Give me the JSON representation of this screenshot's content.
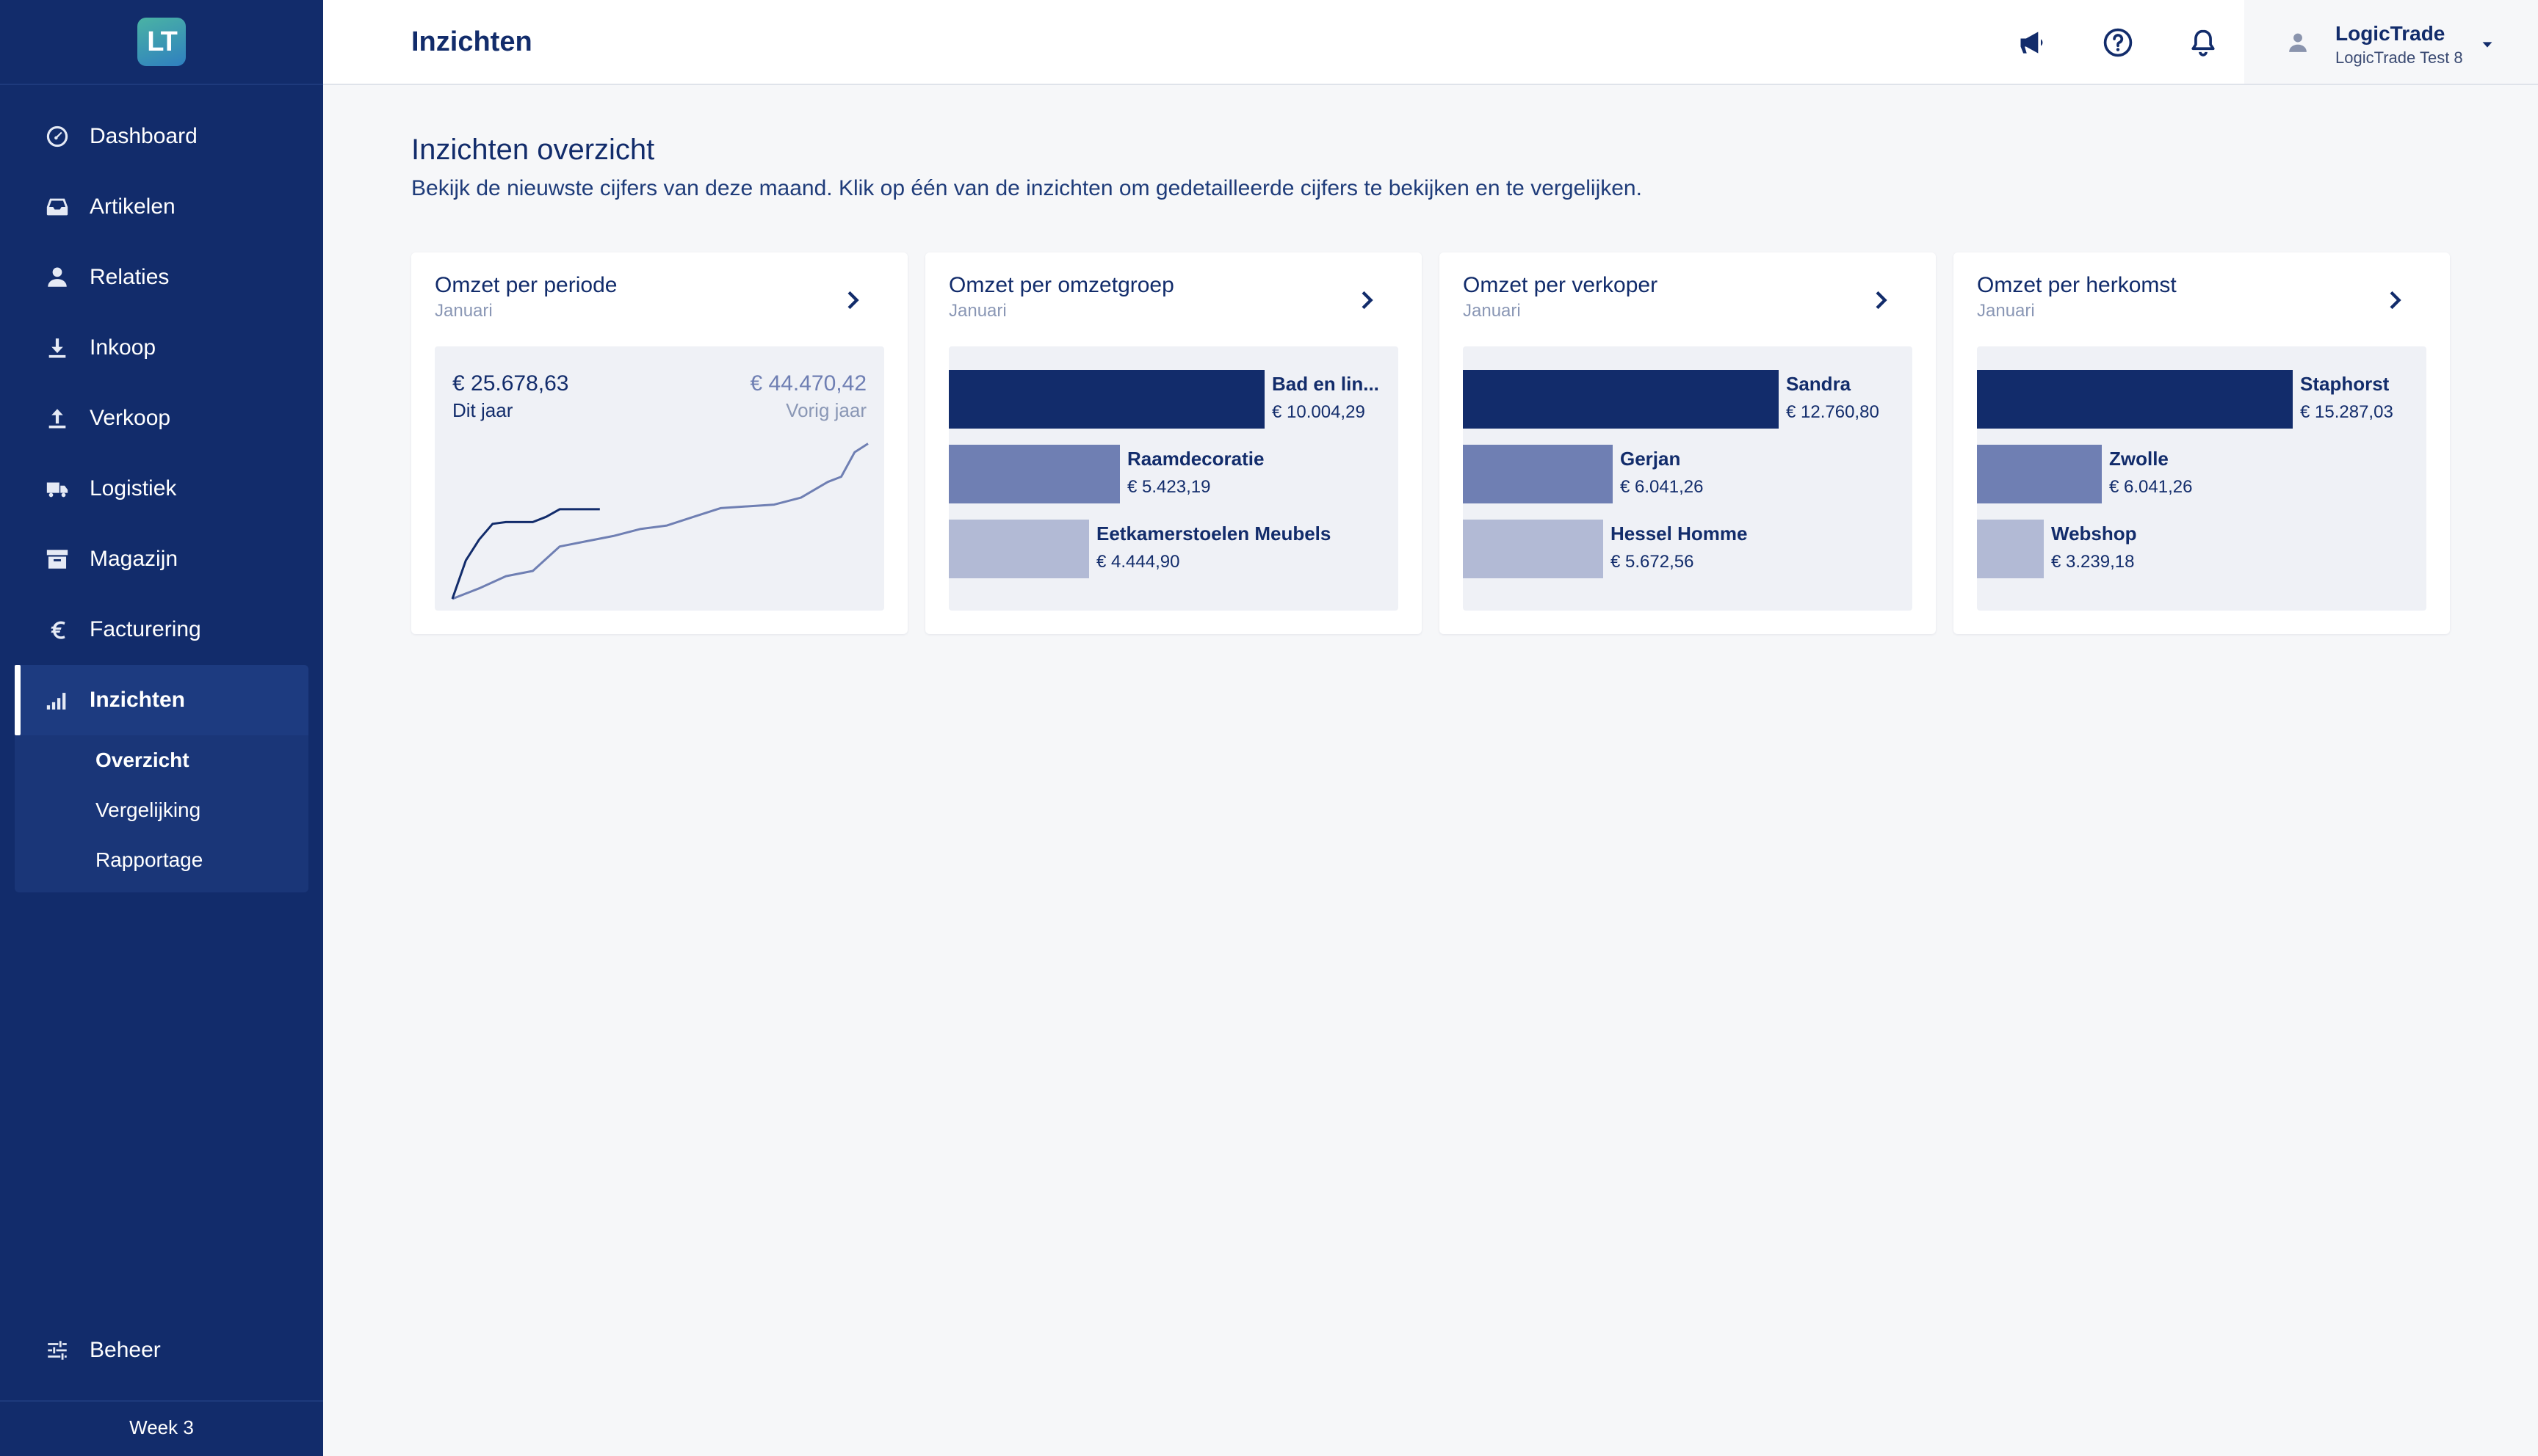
{
  "app": {
    "logo_text": "LT",
    "week_label": "Week 3"
  },
  "header": {
    "title": "Inzichten",
    "icons": [
      "megaphone-icon",
      "help-icon",
      "bell-icon"
    ]
  },
  "user": {
    "name": "LogicTrade",
    "company": "LogicTrade Test 8"
  },
  "sidebar": {
    "items": [
      {
        "label": "Dashboard",
        "icon": "gauge-icon"
      },
      {
        "label": "Artikelen",
        "icon": "inbox-icon"
      },
      {
        "label": "Relaties",
        "icon": "person-icon"
      },
      {
        "label": "Inkoop",
        "icon": "download-icon"
      },
      {
        "label": "Verkoop",
        "icon": "upload-icon"
      },
      {
        "label": "Logistiek",
        "icon": "truck-icon"
      },
      {
        "label": "Magazijn",
        "icon": "archive-icon"
      },
      {
        "label": "Facturering",
        "icon": "euro-icon"
      },
      {
        "label": "Inzichten",
        "icon": "signal-bars-icon"
      }
    ],
    "submenu": [
      {
        "label": "Overzicht"
      },
      {
        "label": "Vergelijking"
      },
      {
        "label": "Rapportage"
      }
    ],
    "beheer": {
      "label": "Beheer",
      "icon": "sliders-icon"
    }
  },
  "main": {
    "title": "Inzichten overzicht",
    "description": "Bekijk de nieuwste cijfers van deze maand. Klik op één van de inzichten om gedetailleerde cijfers te bekijken en te vergelijken."
  },
  "cards": [
    {
      "title": "Omzet per periode",
      "subtitle": "Januari",
      "this_year_value": "€ 25.678,63",
      "this_year_label": "Dit jaar",
      "last_year_value": "€ 44.470,42",
      "last_year_label": "Vorig jaar"
    },
    {
      "title": "Omzet per omzetgroep",
      "subtitle": "Januari",
      "bars": [
        {
          "label": "Bad en lin...",
          "value": "€ 10.004,29",
          "amount": 10004.29,
          "color": "#122c6b"
        },
        {
          "label": "Raamdecoratie",
          "value": "€ 5.423,19",
          "amount": 5423.19,
          "color": "#6f7fb3"
        },
        {
          "label": "Eetkamerstoelen Meubels",
          "value": "€ 4.444,90",
          "amount": 4444.9,
          "color": "#b2bad5"
        }
      ]
    },
    {
      "title": "Omzet per verkoper",
      "subtitle": "Januari",
      "bars": [
        {
          "label": "Sandra",
          "value": "€ 12.760,80",
          "amount": 12760.8,
          "color": "#122c6b"
        },
        {
          "label": "Gerjan",
          "value": "€ 6.041,26",
          "amount": 6041.26,
          "color": "#6f7fb3"
        },
        {
          "label": "Hessel Homme",
          "value": "€ 5.672,56",
          "amount": 5672.56,
          "color": "#b2bad5"
        }
      ]
    },
    {
      "title": "Omzet per herkomst",
      "subtitle": "Januari",
      "bars": [
        {
          "label": "Staphorst",
          "value": "€ 15.287,03",
          "amount": 15287.03,
          "color": "#122c6b"
        },
        {
          "label": "Zwolle",
          "value": "€ 6.041,26",
          "amount": 6041.26,
          "color": "#6f7fb3"
        },
        {
          "label": "Webshop",
          "value": "€ 3.239,18",
          "amount": 3239.18,
          "color": "#b2bad5"
        }
      ]
    }
  ],
  "chart_data": {
    "type": "line",
    "title": "Omzet per periode",
    "xlabel": "",
    "ylabel": "",
    "ylim": [
      0,
      45000
    ],
    "series": [
      {
        "name": "Dit jaar",
        "color": "#122c6b",
        "x": [
          0,
          2,
          4,
          6,
          8,
          10,
          12,
          14,
          16,
          18,
          20,
          22
        ],
        "values": [
          0,
          11000,
          17000,
          21500,
          22000,
          22000,
          22000,
          23500,
          25678,
          25678,
          25678,
          25678
        ]
      },
      {
        "name": "Vorig jaar",
        "color": "#6f7fb3",
        "x": [
          0,
          4,
          8,
          12,
          16,
          20,
          24,
          28,
          32,
          36,
          40,
          44,
          48,
          52,
          56,
          58,
          60,
          62
        ],
        "values": [
          0,
          3000,
          6500,
          8000,
          15000,
          16500,
          18000,
          20000,
          21000,
          23500,
          26000,
          26500,
          27000,
          29000,
          33500,
          35000,
          42000,
          44470
        ]
      }
    ]
  }
}
